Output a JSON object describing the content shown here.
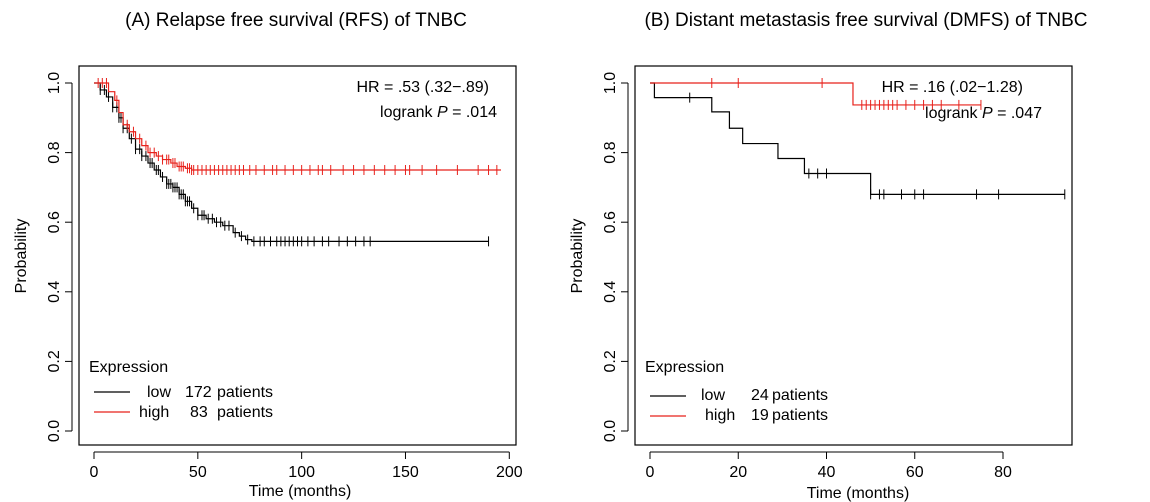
{
  "chart_data": [
    {
      "type": "line",
      "subtype": "kaplan-meier",
      "title": "(A) Relapse free survival (RFS) of TNBC",
      "xlabel": "Time (months)",
      "ylabel": "Probability",
      "xlim": [
        0,
        200
      ],
      "ylim": [
        0,
        1
      ],
      "xticks": [
        "0",
        "50",
        "100",
        "150",
        "200"
      ],
      "yticks": [
        "0.0",
        "0.2",
        "0.4",
        "0.6",
        "0.8",
        "1.0"
      ],
      "stats": {
        "hr": "HR = .53 (.32−.89)",
        "logrank_prefix": "logrank ",
        "logrank_p": "P",
        "logrank_suffix": " = .014"
      },
      "legend": {
        "title": "Expression",
        "position": "bottom-left",
        "entries": [
          {
            "label": "low",
            "count": "172",
            "unit": "patients",
            "color": "#000000"
          },
          {
            "label": "high",
            "count": "83",
            "unit": "patients",
            "color": "#e8201a"
          }
        ]
      },
      "series": [
        {
          "name": "low",
          "color": "#000000",
          "steps": [
            [
              0,
              1.0
            ],
            [
              3,
              0.98
            ],
            [
              6,
              0.96
            ],
            [
              9,
              0.93
            ],
            [
              12,
              0.9
            ],
            [
              14,
              0.87
            ],
            [
              17,
              0.84
            ],
            [
              20,
              0.81
            ],
            [
              23,
              0.79
            ],
            [
              26,
              0.77
            ],
            [
              29,
              0.75
            ],
            [
              32,
              0.73
            ],
            [
              35,
              0.71
            ],
            [
              38,
              0.7
            ],
            [
              41,
              0.68
            ],
            [
              44,
              0.66
            ],
            [
              47,
              0.64
            ],
            [
              50,
              0.62
            ],
            [
              54,
              0.61
            ],
            [
              58,
              0.6
            ],
            [
              62,
              0.59
            ],
            [
              67,
              0.57
            ],
            [
              70,
              0.56
            ],
            [
              73,
              0.55
            ],
            [
              76,
              0.545
            ],
            [
              190,
              0.545
            ]
          ],
          "censor_x": [
            3,
            5,
            7,
            9,
            11,
            12,
            13,
            14,
            16,
            18,
            20,
            22,
            23,
            25,
            27,
            28,
            30,
            31,
            33,
            35,
            36,
            37,
            38,
            39,
            40,
            41,
            42,
            43,
            44,
            45,
            46,
            48,
            50,
            52,
            53,
            55,
            57,
            59,
            61,
            63,
            65,
            68,
            71,
            74,
            77,
            80,
            82,
            85,
            88,
            90,
            92,
            94,
            96,
            98,
            100,
            103,
            106,
            110,
            113,
            118,
            122,
            126,
            130,
            133,
            190
          ]
        },
        {
          "name": "high",
          "color": "#e8201a",
          "steps": [
            [
              0,
              1.0
            ],
            [
              7,
              0.975
            ],
            [
              10,
              0.95
            ],
            [
              12,
              0.915
            ],
            [
              14,
              0.88
            ],
            [
              17,
              0.86
            ],
            [
              20,
              0.84
            ],
            [
              23,
              0.82
            ],
            [
              26,
              0.8
            ],
            [
              30,
              0.79
            ],
            [
              33,
              0.78
            ],
            [
              37,
              0.77
            ],
            [
              40,
              0.76
            ],
            [
              44,
              0.755
            ],
            [
              47,
              0.75
            ],
            [
              196,
              0.75
            ]
          ],
          "censor_x": [
            2,
            4,
            6,
            11,
            16,
            19,
            22,
            25,
            27,
            29,
            31,
            33,
            35,
            36,
            38,
            39,
            41,
            42,
            43,
            45,
            46,
            47,
            48,
            50,
            52,
            54,
            56,
            58,
            60,
            62,
            64,
            66,
            68,
            70,
            72,
            75,
            78,
            82,
            86,
            88,
            92,
            96,
            100,
            104,
            108,
            110,
            114,
            120,
            125,
            130,
            135,
            140,
            145,
            150,
            152,
            158,
            165,
            175,
            185,
            190,
            194
          ]
        }
      ]
    },
    {
      "type": "line",
      "subtype": "kaplan-meier",
      "title": "(B) Distant metastasis free survival (DMFS) of TNBC",
      "xlabel": "Time (months)",
      "ylabel": "Probability",
      "xlim": [
        0,
        95
      ],
      "ylim": [
        0,
        1
      ],
      "xticks": [
        "0",
        "20",
        "40",
        "60",
        "80"
      ],
      "yticks": [
        "0.0",
        "0.2",
        "0.4",
        "0.6",
        "0.8",
        "1.0"
      ],
      "stats": {
        "hr": "HR = .16 (.02−1.28)",
        "logrank_prefix": "logrank ",
        "logrank_p": "P",
        "logrank_suffix": " = .047"
      },
      "legend": {
        "title": "Expression",
        "position": "bottom-left",
        "entries": [
          {
            "label": "low",
            "count": "24",
            "unit": "patients",
            "color": "#000000"
          },
          {
            "label": "high",
            "count": "19",
            "unit": "patients",
            "color": "#e8201a"
          }
        ]
      },
      "series": [
        {
          "name": "low",
          "color": "#000000",
          "steps": [
            [
              0,
              1.0
            ],
            [
              1,
              0.958
            ],
            [
              14,
              0.917
            ],
            [
              18,
              0.87
            ],
            [
              21,
              0.826
            ],
            [
              29,
              0.783
            ],
            [
              35,
              0.74
            ],
            [
              50,
              0.68
            ],
            [
              94,
              0.68
            ]
          ],
          "censor_x": [
            9,
            36,
            38,
            40,
            50,
            52,
            53,
            57,
            60,
            62,
            74,
            79,
            94
          ]
        },
        {
          "name": "high",
          "color": "#e8201a",
          "steps": [
            [
              0,
              1.0
            ],
            [
              46,
              0.937
            ],
            [
              75,
              0.937
            ]
          ],
          "censor_x": [
            14,
            20,
            39,
            48,
            49,
            50,
            51,
            52,
            53,
            54,
            55,
            56,
            58,
            60,
            62,
            64,
            66,
            70,
            75
          ]
        }
      ]
    }
  ]
}
